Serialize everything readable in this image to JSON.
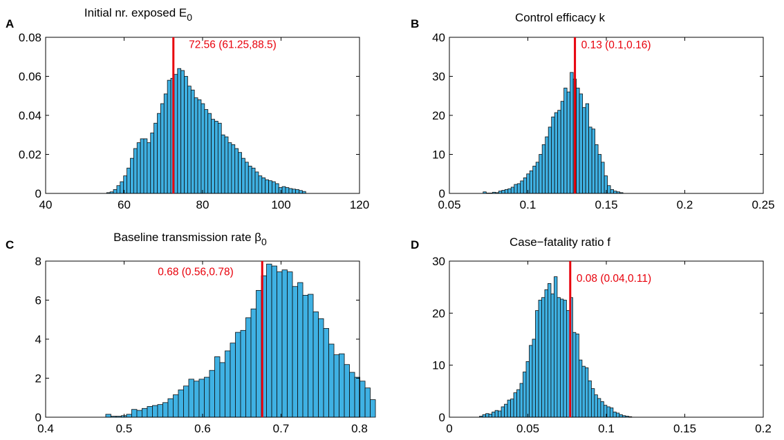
{
  "colors": {
    "bar_fill": "#3fb1e3",
    "bar_edge": "#0d0d0d",
    "estimate_line": "#e8000b",
    "axes": "#000000"
  },
  "chart_data": [
    {
      "panel_letter": "A",
      "type": "bar",
      "title": "Initial nr. exposed E",
      "title_subscript": "0",
      "xlim": [
        40,
        120
      ],
      "ylim": [
        0,
        0.08
      ],
      "xticks": [
        40,
        60,
        80,
        100,
        120
      ],
      "xtick_labels": [
        "40",
        "60",
        "80",
        "100",
        "120"
      ],
      "yticks": [
        0,
        0.02,
        0.04,
        0.06,
        0.08
      ],
      "ytick_labels": [
        "0",
        "0.02",
        "0.04",
        "0.06",
        "0.08"
      ],
      "bin_start": 54.7,
      "bin_width": 0.86,
      "values": [
        0,
        0.0004,
        0.0008,
        0.002,
        0.004,
        0.006,
        0.009,
        0.013,
        0.018,
        0.023,
        0.026,
        0.028,
        0.028,
        0.026,
        0.031,
        0.036,
        0.041,
        0.046,
        0.051,
        0.058,
        0.059,
        0.061,
        0.064,
        0.063,
        0.06,
        0.055,
        0.053,
        0.049,
        0.048,
        0.046,
        0.043,
        0.041,
        0.038,
        0.037,
        0.036,
        0.03,
        0.029,
        0.026,
        0.025,
        0.023,
        0.021,
        0.018,
        0.016,
        0.014,
        0.013,
        0.011,
        0.009,
        0.008,
        0.007,
        0.0065,
        0.006,
        0.005,
        0.003,
        0.0035,
        0.003,
        0.0025,
        0.0022,
        0.002,
        0.0015,
        0.001
      ],
      "estimate_x": 72.56,
      "annotation": "72.56 (61.25,88.5)",
      "annotation_at": [
        76.5,
        0.0745
      ]
    },
    {
      "panel_letter": "B",
      "type": "bar",
      "title": "Control efficacy k",
      "xlim": [
        0.05,
        0.25
      ],
      "ylim": [
        0,
        40
      ],
      "xticks": [
        0.05,
        0.1,
        0.15,
        0.2,
        0.25
      ],
      "xtick_labels": [
        "0.05",
        "0.1",
        "0.15",
        "0.2",
        "0.25"
      ],
      "yticks": [
        0,
        10,
        20,
        30,
        40
      ],
      "ytick_labels": [
        "0",
        "10",
        "20",
        "30",
        "40"
      ],
      "bin_start": 0.0715,
      "bin_width": 0.00198,
      "values": [
        0.4,
        0.1,
        0.1,
        0.3,
        0.2,
        0.6,
        0.8,
        1.0,
        1.2,
        1.6,
        2.3,
        2.5,
        3.2,
        4.0,
        5.0,
        5.8,
        7.0,
        8.0,
        10.0,
        12.5,
        14.5,
        17.0,
        19.6,
        20.7,
        21.3,
        23.6,
        27.0,
        26.0,
        31.0,
        29.3,
        27.0,
        25.5,
        22.0,
        23.0,
        17.0,
        16.5,
        12.5,
        10.0,
        8.0,
        4.5,
        2.0,
        1.0,
        0.6,
        0.4,
        0.2
      ],
      "estimate_x": 0.13,
      "annotation": "0.13 (0.1,0.16)",
      "annotation_at": [
        0.134,
        37.2
      ]
    },
    {
      "panel_letter": "C",
      "type": "bar",
      "title": "Baseline transmission rate β",
      "title_subscript": "0",
      "xlim": [
        0.4,
        0.8
      ],
      "ylim": [
        0,
        8
      ],
      "xticks": [
        0.4,
        0.5,
        0.6,
        0.7,
        0.8
      ],
      "xtick_labels": [
        "0.4",
        "0.5",
        "0.6",
        "0.7",
        "0.8"
      ],
      "yticks": [
        0,
        2,
        4,
        6,
        8
      ],
      "ytick_labels": [
        "0",
        "2",
        "4",
        "6",
        "8"
      ],
      "bin_start": 0.4766,
      "bin_width": 0.00661,
      "values": [
        0.15,
        0.05,
        0.05,
        0.08,
        0.15,
        0.4,
        0.35,
        0.45,
        0.55,
        0.6,
        0.65,
        0.75,
        0.95,
        1.15,
        1.4,
        1.6,
        1.95,
        1.85,
        1.95,
        2.05,
        2.4,
        3.1,
        2.8,
        3.4,
        3.8,
        4.35,
        4.45,
        5.1,
        5.55,
        6.5,
        7.25,
        7.85,
        7.75,
        7.45,
        7.55,
        7.45,
        6.7,
        6.9,
        6.25,
        6.3,
        5.4,
        5.05,
        4.55,
        3.75,
        3.2,
        3.25,
        2.7,
        2.3,
        2.05,
        1.85,
        1.5,
        0.9
      ],
      "estimate_x": 0.676,
      "annotation": "0.68 (0.56,0.78)",
      "annotation_at": [
        0.543,
        7.28
      ]
    },
    {
      "panel_letter": "D",
      "type": "bar",
      "title": "Case−fatality ratio f",
      "xlim": [
        0,
        0.2
      ],
      "ylim": [
        0,
        30
      ],
      "xticks": [
        0,
        0.05,
        0.1,
        0.15,
        0.2
      ],
      "xtick_labels": [
        "0",
        "0.05",
        "0.1",
        "0.15",
        "0.2"
      ],
      "yticks": [
        0,
        10,
        20,
        30
      ],
      "ytick_labels": [
        "0",
        "10",
        "20",
        "30"
      ],
      "bin_start": 0.0192,
      "bin_width": 0.00198,
      "values": [
        0.2,
        0.5,
        0.7,
        0.6,
        1.0,
        1.3,
        1.2,
        2.0,
        2.5,
        3.3,
        3.5,
        4.7,
        5.3,
        6.5,
        8.7,
        10.7,
        13.8,
        15.0,
        20.5,
        22.5,
        23.0,
        24.5,
        25.7,
        23.7,
        27.0,
        23.0,
        22.7,
        22.5,
        20.5,
        23.0,
        16.3,
        16.0,
        11.0,
        9.8,
        9.5,
        7.0,
        5.5,
        4.3,
        3.6,
        3.0,
        2.3,
        2.0,
        1.8,
        1.0,
        0.8,
        0.5,
        0.3,
        0.2,
        0.1
      ],
      "estimate_x": 0.077,
      "annotation": "0.08 (0.04,0.11)",
      "annotation_at": [
        0.081,
        26.0
      ]
    }
  ]
}
